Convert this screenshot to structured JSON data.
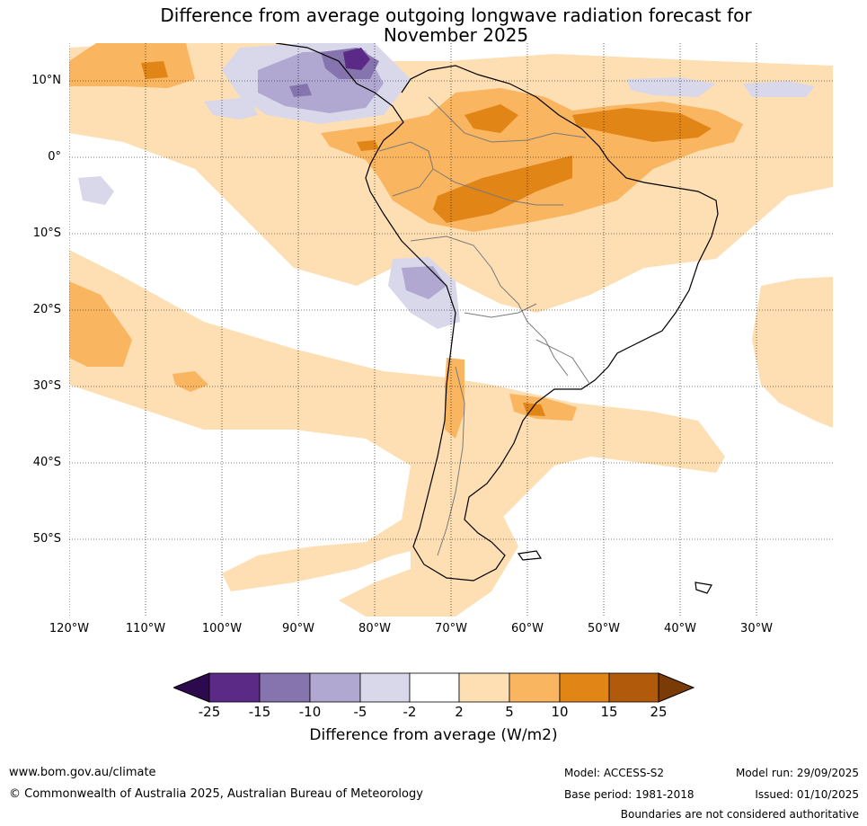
{
  "title_line1": "Difference from average outgoing longwave radiation forecast for",
  "title_line2": "November 2025",
  "lat_labels": [
    "10°N",
    "0°",
    "10°S",
    "20°S",
    "30°S",
    "40°S",
    "50°S"
  ],
  "lon_labels": [
    "120°W",
    "110°W",
    "100°W",
    "90°W",
    "80°W",
    "70°W",
    "60°W",
    "50°W",
    "40°W",
    "30°W"
  ],
  "colorbar": {
    "ticks": [
      "-25",
      "-15",
      "-10",
      "-5",
      "-2",
      "2",
      "5",
      "10",
      "15",
      "25"
    ],
    "colors": [
      "#2d0a4e",
      "#5b2a86",
      "#8574ad",
      "#b0a8d0",
      "#d9d8ea",
      "#ffffff",
      "#fddfb3",
      "#f9b560",
      "#e08516",
      "#b25a0b",
      "#7a3b07"
    ],
    "label": "Difference from average (W/m2)"
  },
  "footer": {
    "website": "www.bom.gov.au/climate",
    "copyright": "© Commonwealth of Australia 2025, Australian Bureau of Meteorology",
    "model": "Model: ACCESS-S2",
    "base_period": "Base period: 1981-2018",
    "model_run": "Model run: 29/09/2025",
    "issued": "Issued: 01/10/2025",
    "disclaimer": "Boundaries are not considered authoritative"
  }
}
